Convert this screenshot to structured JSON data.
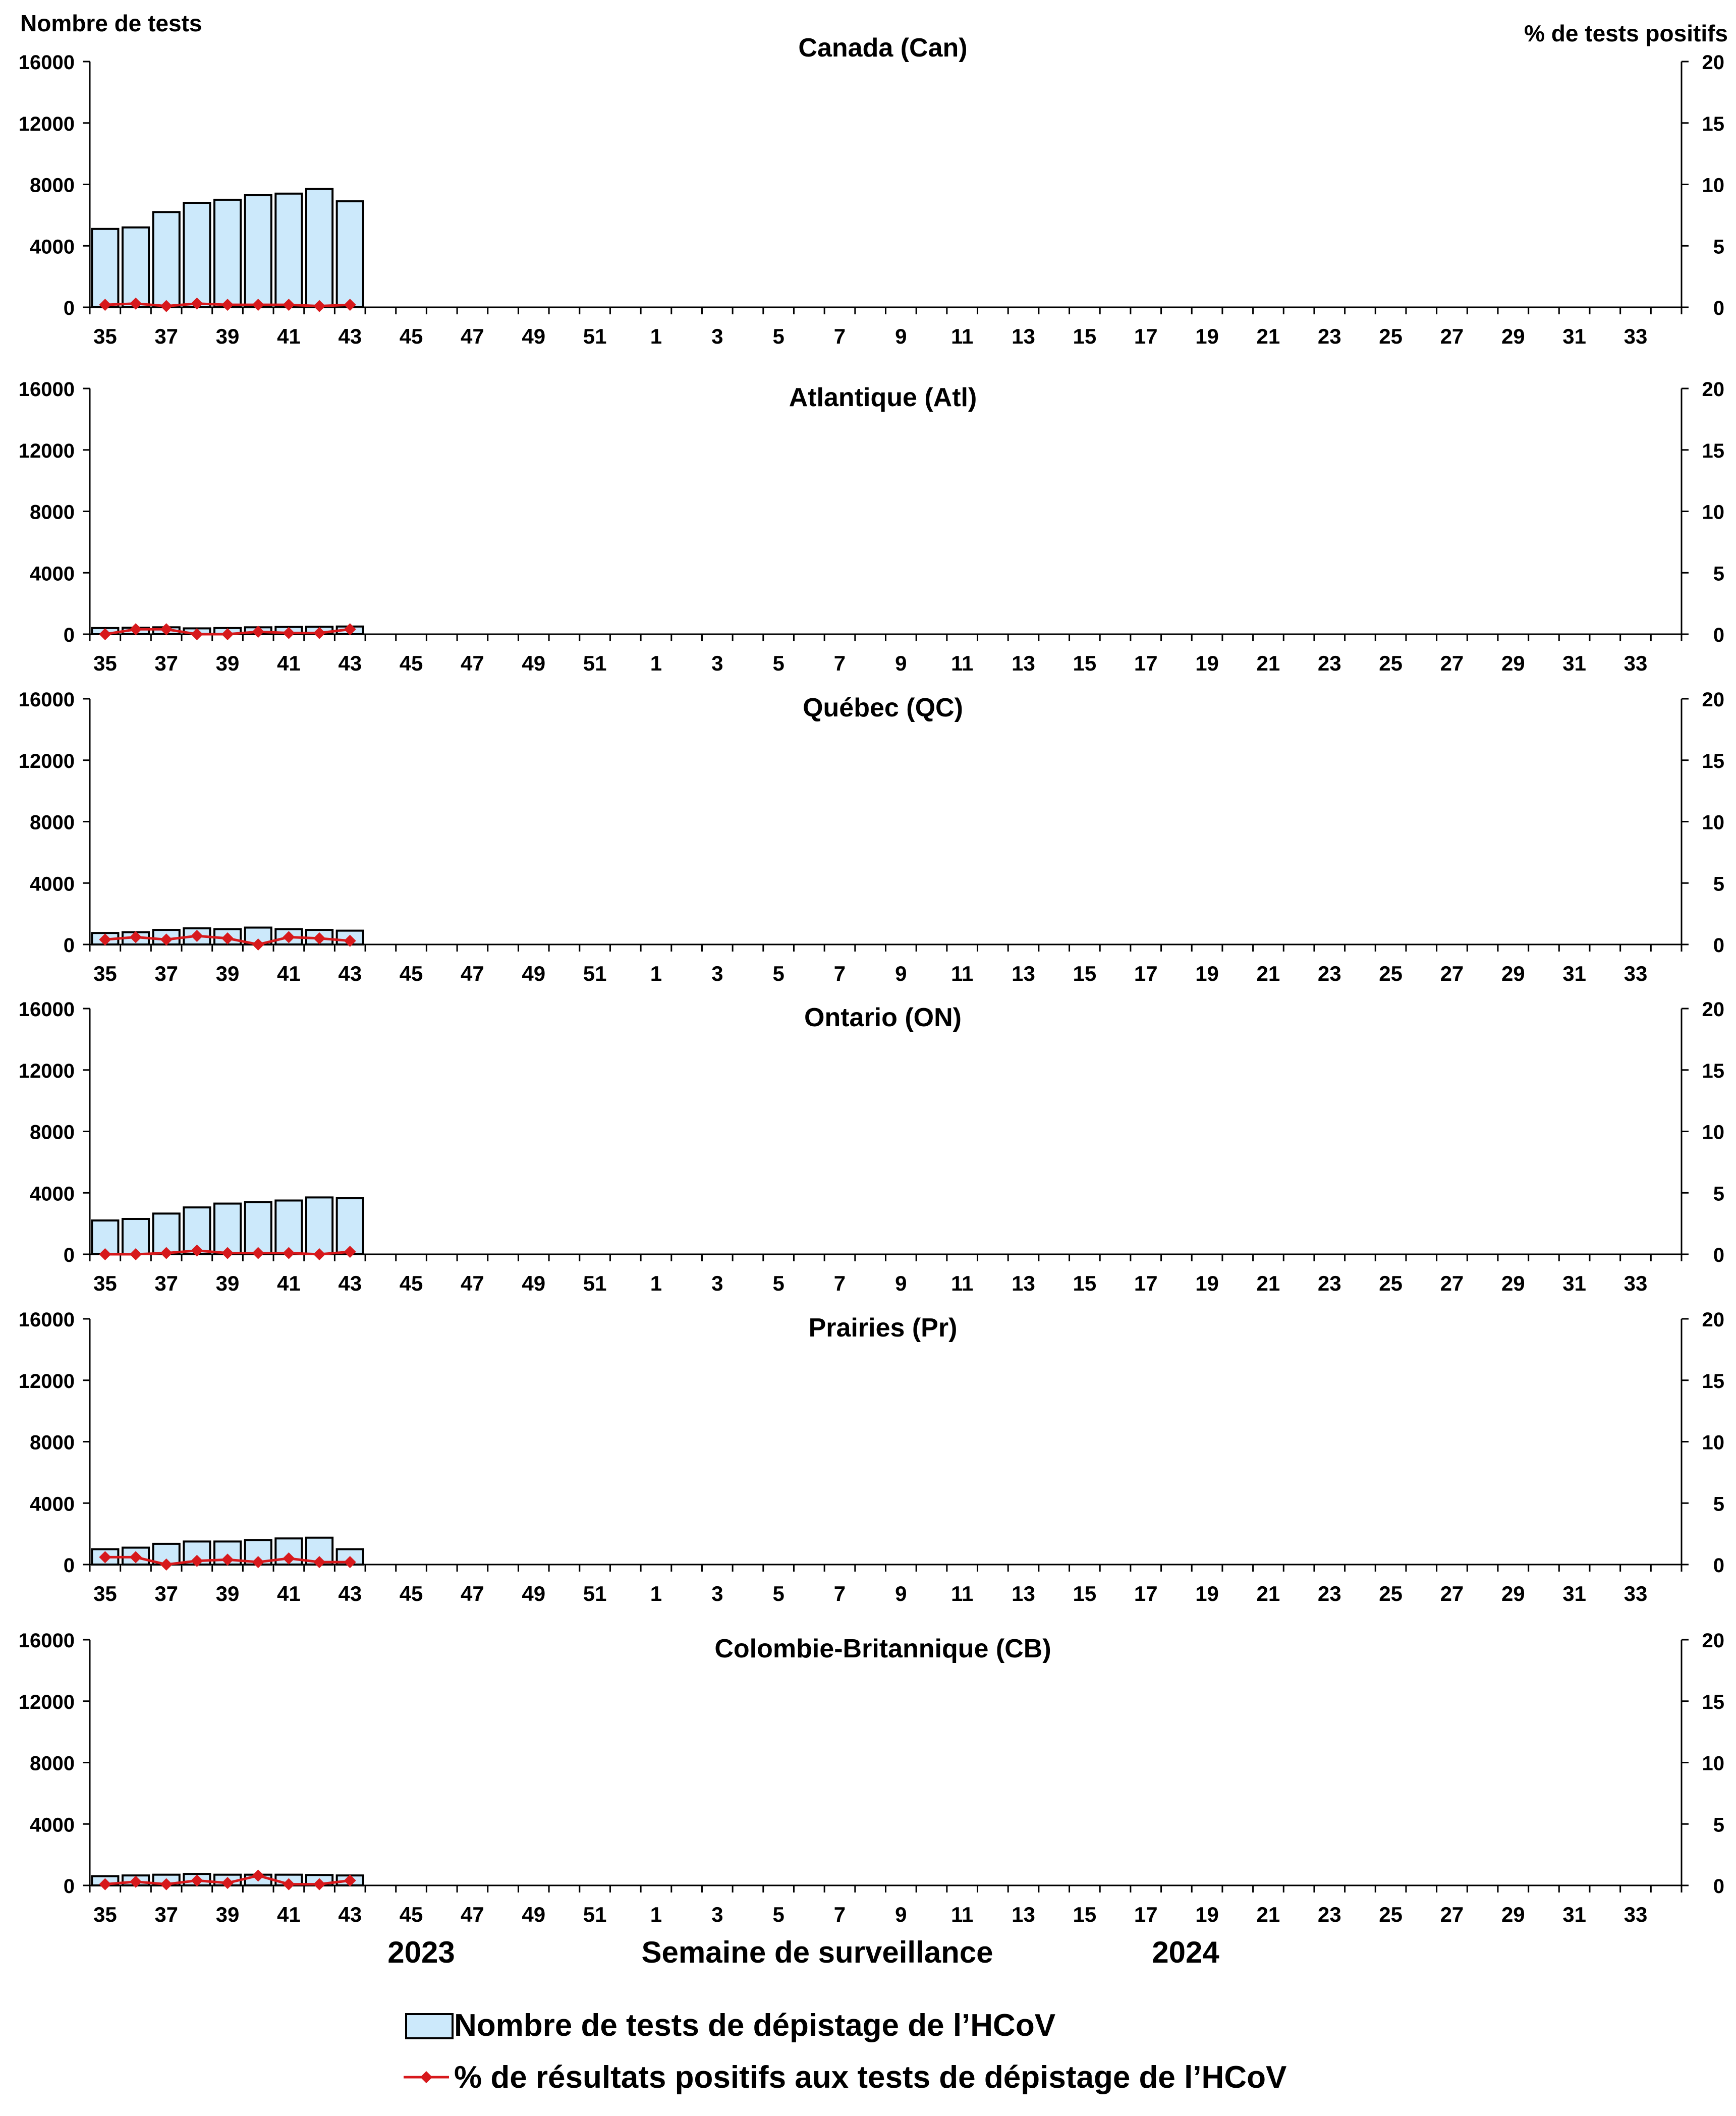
{
  "left_axis_title": "Nombre de tests",
  "right_axis_title": "% de tests positifs",
  "x_axis_title": "Semaine de surveillance",
  "year_labels": [
    "2023",
    "2024"
  ],
  "legend": {
    "bars_label": "Nombre de tests de dépistage de l’HCoV",
    "line_label": "% de résultats positifs aux tests de dépistage de l’HCoV"
  },
  "colors": {
    "bar_fill": "#CCE9FB",
    "bar_stroke": "#000000",
    "line": "#D7191C",
    "axis": "#000000"
  },
  "chart_data": [
    {
      "type": "bar+line",
      "title": "Canada (Can)",
      "left_ylim": [
        0,
        16000
      ],
      "left_ticks": [
        0,
        4000,
        8000,
        12000,
        16000
      ],
      "right_ylim": [
        0,
        20
      ],
      "right_ticks": [
        0,
        5,
        10,
        15,
        20
      ],
      "x_tick_labels": [
        "35",
        "37",
        "39",
        "41",
        "43",
        "45",
        "47",
        "49",
        "51",
        "1",
        "3",
        "5",
        "7",
        "9",
        "11",
        "13",
        "15",
        "17",
        "19",
        "21",
        "23",
        "25",
        "27",
        "29",
        "31",
        "33"
      ],
      "weeks": [
        "35",
        "36",
        "37",
        "38",
        "39",
        "40",
        "41",
        "42",
        "43"
      ],
      "tests": [
        5100,
        5200,
        6200,
        6800,
        7000,
        7300,
        7400,
        7700,
        6900
      ],
      "pct_positive": [
        0.2,
        0.3,
        0.1,
        0.3,
        0.2,
        0.2,
        0.2,
        0.1,
        0.2
      ]
    },
    {
      "type": "bar+line",
      "title": "Atlantique (Atl)",
      "left_ylim": [
        0,
        16000
      ],
      "left_ticks": [
        0,
        4000,
        8000,
        12000,
        16000
      ],
      "right_ylim": [
        0,
        20
      ],
      "right_ticks": [
        0,
        5,
        10,
        15,
        20
      ],
      "x_tick_labels": [
        "35",
        "37",
        "39",
        "41",
        "43",
        "45",
        "47",
        "49",
        "51",
        "1",
        "3",
        "5",
        "7",
        "9",
        "11",
        "13",
        "15",
        "17",
        "19",
        "21",
        "23",
        "25",
        "27",
        "29",
        "31",
        "33"
      ],
      "weeks": [
        "35",
        "36",
        "37",
        "38",
        "39",
        "40",
        "41",
        "42",
        "43"
      ],
      "tests": [
        400,
        420,
        450,
        380,
        400,
        450,
        470,
        480,
        500
      ],
      "pct_positive": [
        0.0,
        0.4,
        0.4,
        0.0,
        0.0,
        0.2,
        0.1,
        0.1,
        0.4
      ]
    },
    {
      "type": "bar+line",
      "title": "Québec (QC)",
      "left_ylim": [
        0,
        16000
      ],
      "left_ticks": [
        0,
        4000,
        8000,
        12000,
        16000
      ],
      "right_ylim": [
        0,
        20
      ],
      "right_ticks": [
        0,
        5,
        10,
        15,
        20
      ],
      "x_tick_labels": [
        "35",
        "37",
        "39",
        "41",
        "43",
        "45",
        "47",
        "49",
        "51",
        "1",
        "3",
        "5",
        "7",
        "9",
        "11",
        "13",
        "15",
        "17",
        "19",
        "21",
        "23",
        "25",
        "27",
        "29",
        "31",
        "33"
      ],
      "weeks": [
        "35",
        "36",
        "37",
        "38",
        "39",
        "40",
        "41",
        "42",
        "43"
      ],
      "tests": [
        750,
        800,
        950,
        1050,
        1000,
        1100,
        1000,
        950,
        900
      ],
      "pct_positive": [
        0.4,
        0.6,
        0.4,
        0.7,
        0.5,
        0.0,
        0.6,
        0.5,
        0.3
      ]
    },
    {
      "type": "bar+line",
      "title": "Ontario (ON)",
      "left_ylim": [
        0,
        16000
      ],
      "left_ticks": [
        0,
        4000,
        8000,
        12000,
        16000
      ],
      "right_ylim": [
        0,
        20
      ],
      "right_ticks": [
        0,
        5,
        10,
        15,
        20
      ],
      "x_tick_labels": [
        "35",
        "37",
        "39",
        "41",
        "43",
        "45",
        "47",
        "49",
        "51",
        "1",
        "3",
        "5",
        "7",
        "9",
        "11",
        "13",
        "15",
        "17",
        "19",
        "21",
        "23",
        "25",
        "27",
        "29",
        "31",
        "33"
      ],
      "weeks": [
        "35",
        "36",
        "37",
        "38",
        "39",
        "40",
        "41",
        "42",
        "43"
      ],
      "tests": [
        2200,
        2300,
        2650,
        3050,
        3300,
        3400,
        3500,
        3700,
        3650
      ],
      "pct_positive": [
        0.0,
        0.0,
        0.1,
        0.3,
        0.1,
        0.1,
        0.1,
        0.0,
        0.2
      ]
    },
    {
      "type": "bar+line",
      "title": "Prairies (Pr)",
      "left_ylim": [
        0,
        16000
      ],
      "left_ticks": [
        0,
        4000,
        8000,
        12000,
        16000
      ],
      "right_ylim": [
        0,
        20
      ],
      "right_ticks": [
        0,
        5,
        10,
        15,
        20
      ],
      "x_tick_labels": [
        "35",
        "37",
        "39",
        "41",
        "43",
        "45",
        "47",
        "49",
        "51",
        "1",
        "3",
        "5",
        "7",
        "9",
        "11",
        "13",
        "15",
        "17",
        "19",
        "21",
        "23",
        "25",
        "27",
        "29",
        "31",
        "33"
      ],
      "weeks": [
        "35",
        "36",
        "37",
        "38",
        "39",
        "40",
        "41",
        "42",
        "43"
      ],
      "tests": [
        1000,
        1100,
        1350,
        1500,
        1500,
        1600,
        1700,
        1750,
        1000
      ],
      "pct_positive": [
        0.6,
        0.6,
        0.0,
        0.3,
        0.4,
        0.2,
        0.5,
        0.2,
        0.2
      ]
    },
    {
      "type": "bar+line",
      "title": "Colombie-Britannique (CB)",
      "left_ylim": [
        0,
        16000
      ],
      "left_ticks": [
        0,
        4000,
        8000,
        12000,
        16000
      ],
      "right_ylim": [
        0,
        20
      ],
      "right_ticks": [
        0,
        5,
        10,
        15,
        20
      ],
      "x_tick_labels": [
        "35",
        "37",
        "39",
        "41",
        "43",
        "45",
        "47",
        "49",
        "51",
        "1",
        "3",
        "5",
        "7",
        "9",
        "11",
        "13",
        "15",
        "17",
        "19",
        "21",
        "23",
        "25",
        "27",
        "29",
        "31",
        "33"
      ],
      "weeks": [
        "35",
        "36",
        "37",
        "38",
        "39",
        "40",
        "41",
        "42",
        "43"
      ],
      "tests": [
        600,
        650,
        700,
        750,
        700,
        700,
        700,
        680,
        650
      ],
      "pct_positive": [
        0.1,
        0.3,
        0.1,
        0.4,
        0.2,
        0.8,
        0.1,
        0.1,
        0.4
      ]
    }
  ]
}
